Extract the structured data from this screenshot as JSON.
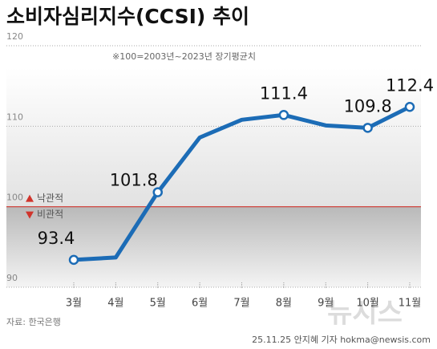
{
  "chart_data": {
    "type": "line",
    "title": "소비자심리지수(CCSI) 추이",
    "subtitle": "※100=2003년~2023년 장기평균치",
    "categories": [
      "3월",
      "4월",
      "5월",
      "6월",
      "7월",
      "8월",
      "9월",
      "10월",
      "11월"
    ],
    "values": [
      93.4,
      93.7,
      101.8,
      108.6,
      110.8,
      111.4,
      110.1,
      109.8,
      112.4
    ],
    "value_labels": [
      "93.4",
      null,
      "101.8",
      null,
      null,
      "111.4",
      null,
      "109.8",
      "112.4"
    ],
    "color": "#1c6cb6",
    "ylim": [
      90,
      120
    ],
    "yticks": [
      90,
      100,
      110,
      120
    ],
    "grid": true,
    "baseline": 100,
    "baseline_color": "#d0342c",
    "legend": {
      "above": "낙관적",
      "below": "비관적"
    },
    "source": "자료: 한국은행",
    "credit": "25.11.25 안지혜 기자 hokma@newsis.com",
    "watermark": "뉴시스"
  }
}
